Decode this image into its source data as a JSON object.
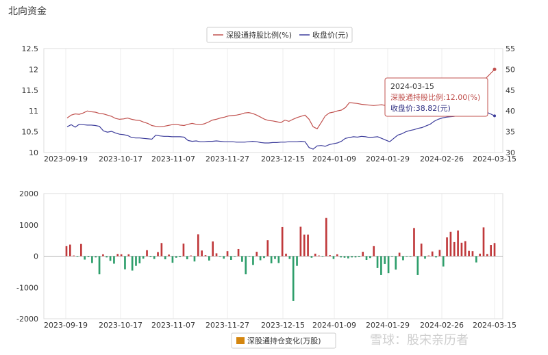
{
  "page": {
    "title": "北向资金"
  },
  "chart_data": [
    {
      "type": "line",
      "legend": [
        "深股通持股比例(%)",
        "收盘价(元)"
      ],
      "legend_position": "top-center",
      "x_ticks": [
        "2023-09-19",
        "2023-10-17",
        "2023-11-07",
        "2023-11-27",
        "2023-12-15",
        "2024-01-09",
        "2024-01-29",
        "2024-02-26",
        "2024-03-15"
      ],
      "y_left_ticks": [
        "10",
        "10.5",
        "11",
        "11.5",
        "12",
        "12.5"
      ],
      "y_left_range": [
        10,
        12.5
      ],
      "y_right_ticks": [
        "30",
        "35",
        "40",
        "45",
        "50",
        "55"
      ],
      "y_right_range": [
        30,
        55
      ],
      "grid": "vertical",
      "colors": {
        "ratio": "#c0504d",
        "price": "#3b3b9a"
      },
      "series": [
        {
          "name": "深股通持股比例(%)",
          "axis": "left",
          "values": [
            10.83,
            10.9,
            10.93,
            10.92,
            10.95,
            11.0,
            10.98,
            10.97,
            10.94,
            10.93,
            10.9,
            10.87,
            10.82,
            10.8,
            10.81,
            10.83,
            10.8,
            10.78,
            10.77,
            10.73,
            10.7,
            10.65,
            10.63,
            10.62,
            10.63,
            10.65,
            10.67,
            10.68,
            10.66,
            10.65,
            10.68,
            10.7,
            10.68,
            10.67,
            10.69,
            10.73,
            10.78,
            10.8,
            10.83,
            10.85,
            10.88,
            10.89,
            10.9,
            10.92,
            10.95,
            10.96,
            10.94,
            10.9,
            10.85,
            10.8,
            10.77,
            10.76,
            10.74,
            10.72,
            10.78,
            10.75,
            10.8,
            10.84,
            10.87,
            10.9,
            10.8,
            10.62,
            10.57,
            10.72,
            10.88,
            10.95,
            10.97,
            11.0,
            11.02,
            11.08,
            11.2,
            11.19,
            11.18,
            11.16,
            11.15,
            11.14,
            11.13,
            11.14,
            11.15,
            11.13,
            11.12,
            11.1,
            11.15,
            11.1,
            11.05,
            10.98,
            11.0,
            11.05,
            11.08,
            11.1,
            11.12,
            11.15,
            11.18,
            11.2,
            11.2,
            11.25,
            11.3,
            11.35,
            11.45,
            11.4,
            11.42,
            11.5,
            11.6,
            11.7,
            11.8,
            11.9,
            12.0
          ]
        },
        {
          "name": "收盘价(元)",
          "axis": "right",
          "values": [
            36.2,
            36.7,
            36.1,
            36.8,
            36.7,
            36.6,
            36.6,
            36.5,
            36.3,
            35.2,
            34.9,
            35.1,
            34.7,
            34.4,
            34.3,
            34.1,
            33.6,
            33.5,
            33.5,
            33.4,
            33.3,
            33.2,
            34.2,
            34.0,
            33.9,
            33.9,
            33.8,
            33.8,
            33.8,
            33.7,
            32.9,
            32.7,
            32.8,
            32.6,
            32.6,
            32.7,
            32.7,
            32.8,
            32.7,
            32.6,
            32.6,
            32.6,
            32.5,
            32.5,
            32.5,
            32.6,
            32.7,
            32.6,
            32.4,
            32.3,
            32.3,
            32.4,
            32.4,
            32.5,
            32.5,
            32.6,
            32.6,
            32.6,
            32.7,
            32.6,
            31.2,
            30.8,
            31.6,
            31.7,
            31.5,
            31.9,
            32.1,
            32.3,
            32.7,
            33.4,
            33.6,
            33.8,
            33.7,
            33.9,
            33.8,
            33.6,
            33.7,
            33.8,
            33.4,
            33.0,
            32.6,
            33.4,
            34.2,
            34.5,
            35.0,
            35.3,
            35.5,
            35.8,
            36.0,
            36.4,
            36.8,
            37.5,
            38.0,
            38.3,
            38.5,
            38.6,
            38.7,
            39.0,
            39.2,
            39.4,
            39.5,
            39.6,
            39.8,
            39.9,
            39.7,
            39.3,
            38.82
          ]
        }
      ],
      "tooltip": {
        "date": "2024-03-15",
        "ratio_label": "深股通持股比例:12.00(%)",
        "price_label": "收盘价:38.82(元)"
      }
    },
    {
      "type": "bar",
      "legend": [
        "深股通持仓变化(万股)"
      ],
      "legend_position": "bottom-center",
      "x_ticks": [
        "2023-09-19",
        "2023-10-17",
        "2023-11-07",
        "2023-11-27",
        "2023-12-15",
        "2024-01-09",
        "2024-01-29",
        "2024-02-26",
        "2024-03-15"
      ],
      "y_ticks": [
        "2000",
        "1000",
        "0",
        "-1000",
        "-2000"
      ],
      "y_range": [
        -2000,
        2000
      ],
      "grid": "vertical",
      "colors": {
        "positive": "#c0393b",
        "negative": "#2e9e6b"
      },
      "values": [
        320,
        370,
        20,
        -20,
        390,
        -110,
        -30,
        -220,
        -40,
        -580,
        60,
        -40,
        -150,
        -240,
        70,
        60,
        -420,
        60,
        -460,
        -310,
        -230,
        -80,
        190,
        -30,
        -90,
        130,
        420,
        -100,
        50,
        -210,
        -50,
        -30,
        400,
        -100,
        20,
        -170,
        700,
        180,
        30,
        -140,
        470,
        90,
        -20,
        -80,
        160,
        -120,
        -20,
        230,
        -180,
        -580,
        -20,
        -280,
        140,
        -130,
        -60,
        510,
        -230,
        -90,
        -220,
        930,
        80,
        -90,
        -1430,
        -310,
        940,
        690,
        690,
        -50,
        80,
        20,
        -20,
        1220,
        30,
        -90,
        60,
        -40,
        -50,
        -70,
        -40,
        -40,
        -30,
        140,
        -120,
        -60,
        320,
        -380,
        -600,
        -250,
        -540,
        -20,
        -430,
        110,
        -130,
        -20,
        -20,
        900,
        -600,
        400,
        -80,
        20,
        150,
        -40,
        200,
        -330,
        600,
        780,
        450,
        820,
        430,
        480,
        170,
        160,
        -200,
        80,
        920,
        70,
        360,
        420
      ]
    }
  ],
  "watermark": "雪球：股宋亲历者"
}
